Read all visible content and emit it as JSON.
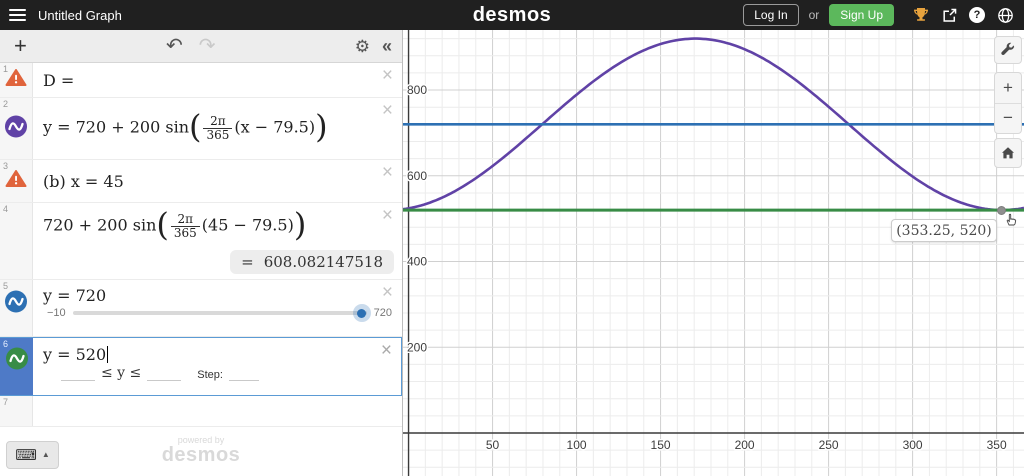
{
  "header": {
    "title": "Untitled Graph",
    "logo": "desmos",
    "login": "Log In",
    "or": "or",
    "signup": "Sign Up"
  },
  "toolbar": {
    "add": "+",
    "undo": "↶",
    "redo": "↷",
    "gear": "⚙",
    "collapse": "«"
  },
  "rows": {
    "r1": {
      "num": "1",
      "math": "D ="
    },
    "r2": {
      "num": "2",
      "pre": "y = 720 + 200 sin",
      "fnum": "2π",
      "fden": "365",
      "post": "(x − 79.5)"
    },
    "r3": {
      "num": "3",
      "math": "(b) x = 45"
    },
    "r4": {
      "num": "4",
      "pre": "720 + 200 sin",
      "fnum": "2π",
      "fden": "365",
      "post": "(45 − 79.5)",
      "result_eq": "=",
      "result": "608.082147518"
    },
    "r5": {
      "num": "5",
      "math": "y = 720",
      "slider_min": "−10",
      "slider_max": "720"
    },
    "r6": {
      "num": "6",
      "math": "y = 520",
      "bounds": "≤ y ≤",
      "step": "Step:"
    },
    "r7": {
      "num": "7"
    }
  },
  "keyboard_button": {
    "glyph": "⌨",
    "caret": "▲"
  },
  "watermark": {
    "line1": "powered by",
    "line2": "desmos"
  },
  "chart_data": {
    "type": "line",
    "title": "",
    "xlabel": "",
    "ylabel": "",
    "x_range": [
      -3.3,
      366.3
    ],
    "y_range": [
      -100.3,
      940.1
    ],
    "x_tick_step": 50,
    "x_minor_step": 10,
    "y_tick_step": 200,
    "y_minor_step": 40,
    "x_tick_labels": [
      50,
      100,
      150,
      200,
      250,
      300,
      350
    ],
    "y_tick_labels": [
      200,
      400,
      600,
      800
    ],
    "grid": true,
    "legend": false,
    "series": [
      {
        "name": "seasonal-sinusoid",
        "kind": "sinusoid",
        "midline": 720,
        "amplitude": 200,
        "period": 365,
        "phase_shift": 79.5,
        "color": "#6042a6",
        "width": 2.6,
        "equation": "y = 720 + 200 sin(2π/365 (x − 79.5))"
      },
      {
        "name": "midline",
        "kind": "hline",
        "y": 720,
        "color": "#2d70b3",
        "width": 2.6,
        "equation": "y = 720"
      },
      {
        "name": "target-line",
        "kind": "hline",
        "y": 520,
        "color": "#388c46",
        "width": 3,
        "equation": "y = 520"
      }
    ],
    "point": {
      "x": 353.25,
      "y": 520,
      "label": "(353.25, 520)"
    }
  },
  "colors": {
    "purple_curve": "#6042a6",
    "blue_curve": "#2d70b3",
    "green_curve": "#388c46",
    "warning": "#e0643c",
    "selected_row": "#4e7ac7",
    "signup_green": "#5cb85c"
  }
}
